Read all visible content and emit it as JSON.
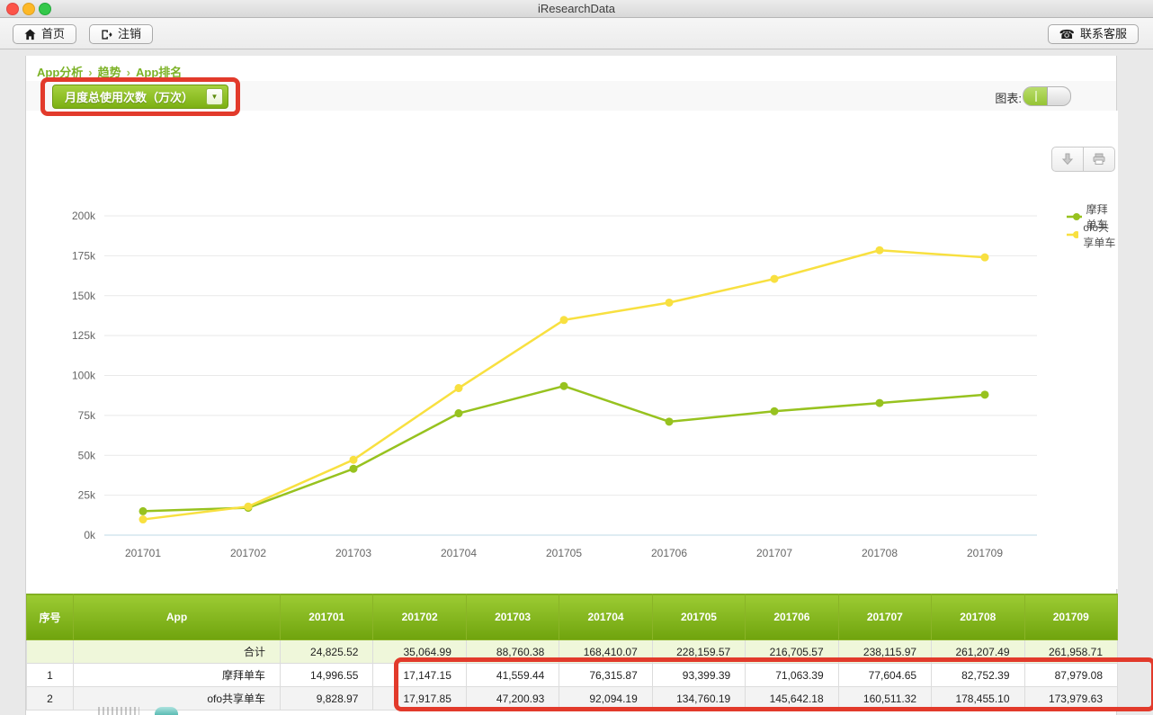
{
  "window": {
    "title": "iResearchData"
  },
  "toolbar": {
    "home_label": "首页",
    "logout_label": "注销",
    "contact_label": "联系客服",
    "contact_icon": "☎"
  },
  "breadcrumb": {
    "items": [
      "App分析",
      "趋势",
      "App排名"
    ],
    "separator": "›"
  },
  "filterbar": {
    "metric_dropdown_value": "月度总使用次数（万次）",
    "dropdown_arrow": "▼",
    "chart_toggle_label": "图表:",
    "chart_toggle_on": true
  },
  "chart_data": {
    "type": "line",
    "x": [
      "201701",
      "201702",
      "201703",
      "201704",
      "201705",
      "201706",
      "201707",
      "201708",
      "201709"
    ],
    "series": [
      {
        "name": "摩拜单车",
        "color": "#97c21f",
        "values": [
          14996.55,
          17147.15,
          41559.44,
          76315.87,
          93399.39,
          71063.39,
          77604.65,
          82752.39,
          87979.08
        ]
      },
      {
        "name": "ofo共享单车",
        "color": "#f8e040",
        "values": [
          9828.97,
          17917.85,
          47200.93,
          92094.19,
          134760.19,
          145642.18,
          160511.32,
          178455.1,
          173979.63
        ]
      }
    ],
    "ylim": [
      0,
      200000
    ],
    "y_tick_step": 25000,
    "y_tick_suffix": "k",
    "grid": true,
    "legend_position": "right"
  },
  "table": {
    "headers": [
      "序号",
      "App",
      "201701",
      "201702",
      "201703",
      "201704",
      "201705",
      "201706",
      "201707",
      "201708",
      "201709"
    ],
    "rows": [
      {
        "index": "",
        "app": "合计",
        "values": [
          "24,825.52",
          "35,064.99",
          "88,760.38",
          "168,410.07",
          "228,159.57",
          "216,705.57",
          "238,115.97",
          "261,207.49",
          "261,958.71"
        ]
      },
      {
        "index": "1",
        "app": "摩拜单车",
        "values": [
          "14,996.55",
          "17,147.15",
          "41,559.44",
          "76,315.87",
          "93,399.39",
          "71,063.39",
          "77,604.65",
          "82,752.39",
          "87,979.08"
        ]
      },
      {
        "index": "2",
        "app": "ofo共享单车",
        "values": [
          "9,828.97",
          "17,917.85",
          "47,200.93",
          "92,094.19",
          "134,760.19",
          "145,642.18",
          "160,511.32",
          "178,455.10",
          "173,979.63"
        ]
      }
    ]
  },
  "colors": {
    "accent_green": "#7cb226",
    "header_green_top": "#9ccb33",
    "header_green_bottom": "#6fa30d",
    "annotation_red": "#e23a2b",
    "series_mobike": "#97c21f",
    "series_ofo": "#f8e040",
    "axis_line": "#bfd9e6",
    "gridline": "#e9e9e9"
  }
}
